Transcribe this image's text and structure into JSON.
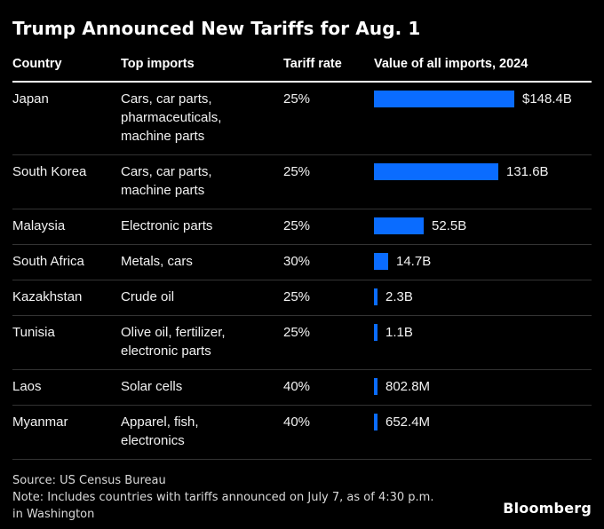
{
  "title": "Trump Announced New Tariffs for Aug. 1",
  "colors": {
    "background": "#000000",
    "bar": "#0A6CFF",
    "divider": "#333333",
    "header_rule": "#FFFFFF",
    "text": "#F2F2F2",
    "footer_text": "#D9D9D9"
  },
  "table": {
    "headers": {
      "country": "Country",
      "imports": "Top imports",
      "rate": "Tariff rate",
      "value": "Value of all imports, 2024"
    },
    "rows": [
      {
        "country": "Japan",
        "imports": "Cars, car parts,\npharmaceuticals,\nmachine parts",
        "rate": "25%",
        "value_label": "$148.4B",
        "value_billions": 148.4
      },
      {
        "country": "South Korea",
        "imports": "Cars, car parts,\nmachine parts",
        "rate": "25%",
        "value_label": "131.6B",
        "value_billions": 131.6
      },
      {
        "country": "Malaysia",
        "imports": "Electronic parts",
        "rate": "25%",
        "value_label": "52.5B",
        "value_billions": 52.5
      },
      {
        "country": "South Africa",
        "imports": "Metals, cars",
        "rate": "30%",
        "value_label": "14.7B",
        "value_billions": 14.7
      },
      {
        "country": "Kazakhstan",
        "imports": "Crude oil",
        "rate": "25%",
        "value_label": "2.3B",
        "value_billions": 2.3
      },
      {
        "country": "Tunisia",
        "imports": "Olive oil, fertilizer,\nelectronic parts",
        "rate": "25%",
        "value_label": "1.1B",
        "value_billions": 1.1
      },
      {
        "country": "Laos",
        "imports": "Solar cells",
        "rate": "40%",
        "value_label": "802.8M",
        "value_billions": 0.8028
      },
      {
        "country": "Myanmar",
        "imports": "Apparel, fish,\nelectronics",
        "rate": "40%",
        "value_label": "652.4M",
        "value_billions": 0.6524
      }
    ]
  },
  "footer": {
    "source": "Source: US Census Bureau",
    "note_line1": "Note: Includes countries with tariffs announced on July 7, as of 4:30 p.m.",
    "note_line2": "in Washington",
    "brand": "Bloomberg"
  },
  "chart_data": {
    "type": "bar",
    "orientation": "horizontal",
    "title": "Trump Announced New Tariffs for Aug. 1",
    "series_label": "Value of all imports, 2024",
    "categories": [
      "Japan",
      "South Korea",
      "Malaysia",
      "South Africa",
      "Kazakhstan",
      "Tunisia",
      "Laos",
      "Myanmar"
    ],
    "values_usd_billions": [
      148.4,
      131.6,
      52.5,
      14.7,
      2.3,
      1.1,
      0.8028,
      0.6524
    ],
    "value_labels": [
      "$148.4B",
      "131.6B",
      "52.5B",
      "14.7B",
      "2.3B",
      "1.1B",
      "802.8M",
      "652.4M"
    ],
    "tariff_rates": [
      "25%",
      "25%",
      "25%",
      "30%",
      "25%",
      "25%",
      "40%",
      "40%"
    ],
    "top_imports": [
      "Cars, car parts, pharmaceuticals, machine parts",
      "Cars, car parts, machine parts",
      "Electronic parts",
      "Metals, cars",
      "Crude oil",
      "Olive oil, fertilizer, electronic parts",
      "Solar cells",
      "Apparel, fish, electronics"
    ],
    "xlim": [
      0,
      150
    ],
    "bar_color": "#0A6CFF",
    "grid": false,
    "legend": false,
    "notes": [
      "Source: US Census Bureau",
      "Note: Includes countries with tariffs announced on July 7, as of 4:30 p.m. in Washington"
    ]
  }
}
